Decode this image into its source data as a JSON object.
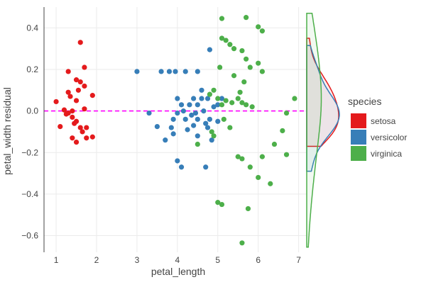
{
  "chart_data": {
    "type": "scatter",
    "xlabel": "petal_length",
    "ylabel": "petal_width residual",
    "xlim": [
      0.7,
      7.2
    ],
    "ylim": [
      -0.68,
      0.5
    ],
    "xticks": [
      1,
      2,
      3,
      4,
      5,
      6,
      7
    ],
    "yticks": [
      -0.6,
      -0.4,
      -0.2,
      0.0,
      0.2,
      0.4
    ],
    "ytick_labels": [
      "−0.6",
      "−0.4",
      "−0.2",
      "0.0",
      "0.2",
      "0.4"
    ],
    "grid": true,
    "reference_line": {
      "y": 0,
      "style": "dashed",
      "color": "#ff00ff"
    },
    "marginal": "density on the right",
    "legend": {
      "title": "species",
      "placement": "right",
      "entries": [
        {
          "name": "setosa",
          "color": "#e41a1c"
        },
        {
          "name": "versicolor",
          "color": "#377eb8"
        },
        {
          "name": "virginica",
          "color": "#4daf4a"
        }
      ]
    },
    "series": [
      {
        "name": "setosa",
        "color": "#e41a1c",
        "points": [
          [
            1.0,
            0.045
          ],
          [
            1.1,
            -0.075
          ],
          [
            1.2,
            0.005
          ],
          [
            1.25,
            -0.015
          ],
          [
            1.3,
            0.19
          ],
          [
            1.3,
            -0.01
          ],
          [
            1.3,
            0.09
          ],
          [
            1.35,
            0.07
          ],
          [
            1.4,
            0.0
          ],
          [
            1.4,
            -0.03
          ],
          [
            1.4,
            -0.13
          ],
          [
            1.45,
            -0.06
          ],
          [
            1.5,
            0.15
          ],
          [
            1.5,
            0.05
          ],
          [
            1.5,
            -0.05
          ],
          [
            1.5,
            -0.15
          ],
          [
            1.55,
            0.1
          ],
          [
            1.6,
            0.33
          ],
          [
            1.6,
            0.14
          ],
          [
            1.6,
            -0.08
          ],
          [
            1.65,
            -0.1
          ],
          [
            1.7,
            0.21
          ],
          [
            1.7,
            0.12
          ],
          [
            1.7,
            0.01
          ],
          [
            1.75,
            -0.13
          ],
          [
            1.75,
            -0.08
          ],
          [
            1.9,
            0.075
          ],
          [
            1.9,
            -0.125
          ]
        ]
      },
      {
        "name": "versicolor",
        "color": "#377eb8",
        "points": [
          [
            3.0,
            0.19
          ],
          [
            3.3,
            -0.01
          ],
          [
            3.5,
            -0.075
          ],
          [
            3.6,
            0.19
          ],
          [
            3.7,
            -0.14
          ],
          [
            3.8,
            0.19
          ],
          [
            3.85,
            -0.08
          ],
          [
            3.9,
            -0.04
          ],
          [
            3.9,
            -0.11
          ],
          [
            3.95,
            0.19
          ],
          [
            4.0,
            0.06
          ],
          [
            4.0,
            -0.01
          ],
          [
            4.0,
            -0.24
          ],
          [
            4.1,
            0.03
          ],
          [
            4.1,
            -0.27
          ],
          [
            4.15,
            0.0
          ],
          [
            4.2,
            -0.04
          ],
          [
            4.2,
            0.19
          ],
          [
            4.25,
            -0.09
          ],
          [
            4.3,
            0.03
          ],
          [
            4.35,
            -0.02
          ],
          [
            4.4,
            0.06
          ],
          [
            4.4,
            -0.07
          ],
          [
            4.45,
            -0.01
          ],
          [
            4.5,
            0.19
          ],
          [
            4.5,
            0.03
          ],
          [
            4.5,
            -0.12
          ],
          [
            4.5,
            -0.04
          ],
          [
            4.6,
            0.1
          ],
          [
            4.6,
            0.06
          ],
          [
            4.65,
            0.0
          ],
          [
            4.7,
            -0.06
          ],
          [
            4.75,
            0.06
          ],
          [
            4.7,
            -0.27
          ],
          [
            4.75,
            -0.08
          ],
          [
            4.8,
            0.295
          ],
          [
            4.8,
            -0.04
          ],
          [
            4.85,
            -0.14
          ],
          [
            4.9,
            0.02
          ],
          [
            5.0,
            0.03
          ],
          [
            5.0,
            -0.05
          ],
          [
            5.1,
            0.06
          ]
        ]
      },
      {
        "name": "virginica",
        "color": "#4daf4a",
        "points": [
          [
            4.5,
            -0.16
          ],
          [
            4.8,
            0.08
          ],
          [
            4.85,
            -0.1
          ],
          [
            4.9,
            -0.12
          ],
          [
            4.9,
            0.1
          ],
          [
            5.0,
            0.06
          ],
          [
            5.0,
            -0.44
          ],
          [
            5.05,
            0.21
          ],
          [
            5.1,
            0.445
          ],
          [
            5.1,
            0.35
          ],
          [
            5.1,
            0.03
          ],
          [
            5.1,
            -0.45
          ],
          [
            5.15,
            -0.04
          ],
          [
            5.2,
            0.34
          ],
          [
            5.2,
            0.05
          ],
          [
            5.3,
            0.32
          ],
          [
            5.3,
            -0.08
          ],
          [
            5.35,
            0.04
          ],
          [
            5.4,
            0.3
          ],
          [
            5.4,
            0.17
          ],
          [
            5.5,
            0.06
          ],
          [
            5.5,
            -0.22
          ],
          [
            5.55,
            0.09
          ],
          [
            5.6,
            0.04
          ],
          [
            5.6,
            0.29
          ],
          [
            5.6,
            -0.23
          ],
          [
            5.6,
            -0.635
          ],
          [
            5.65,
            0.14
          ],
          [
            5.7,
            0.45
          ],
          [
            5.7,
            0.25
          ],
          [
            5.7,
            0.03
          ],
          [
            5.75,
            -0.47
          ],
          [
            5.8,
            0.21
          ],
          [
            5.8,
            -0.27
          ],
          [
            5.85,
            0.02
          ],
          [
            6.0,
            0.405
          ],
          [
            6.0,
            0.23
          ],
          [
            6.0,
            -0.32
          ],
          [
            6.1,
            0.385
          ],
          [
            6.1,
            0.19
          ],
          [
            6.1,
            -0.22
          ],
          [
            6.3,
            -0.35
          ],
          [
            6.4,
            -0.16
          ],
          [
            6.6,
            -0.095
          ],
          [
            6.7,
            -0.01
          ],
          [
            6.7,
            -0.21
          ],
          [
            6.9,
            0.06
          ]
        ]
      }
    ]
  }
}
